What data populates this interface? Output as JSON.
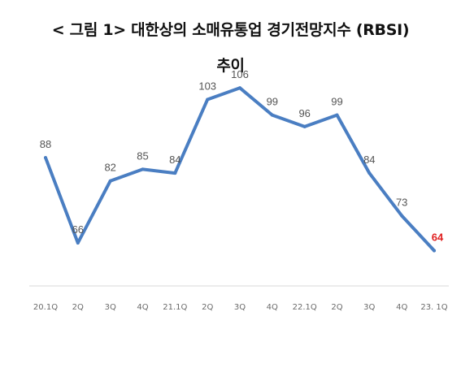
{
  "title": {
    "line1": "< 그림 1> 대한상의 소매유통업 경기전망지수 (RBSI)",
    "line2": "추이"
  },
  "chart_data": {
    "type": "line",
    "categories": [
      "20.1Q",
      "2Q",
      "3Q",
      "4Q",
      "21.1Q",
      "2Q",
      "3Q",
      "4Q",
      "22.1Q",
      "2Q",
      "3Q",
      "4Q",
      "23. 1Q"
    ],
    "series": [
      {
        "values": [
          88,
          66,
          82,
          85,
          84,
          103,
          106,
          99,
          96,
          99,
          84,
          73,
          64
        ],
        "color": "#4a7ec2"
      }
    ],
    "ylim": [
      48,
      130
    ],
    "grid": false,
    "highlight": {
      "index": 12,
      "color": "#e02020"
    },
    "baseline": true
  }
}
